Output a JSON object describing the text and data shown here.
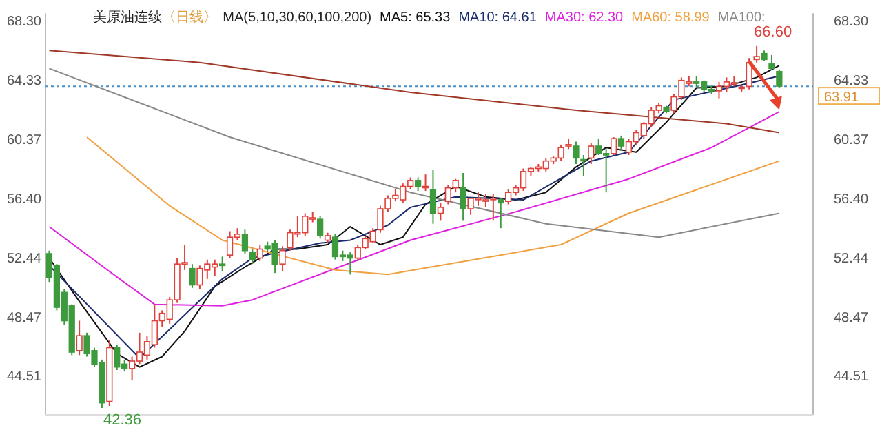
{
  "chart_data": {
    "type": "candlestick",
    "title": "美原油连续",
    "subtitle": "〈日线〉",
    "legend_title": "MA(5,10,30,60,100,200)",
    "legend": "top",
    "categories": [
      null,
      null,
      null,
      null,
      null,
      null,
      null,
      null,
      null,
      null,
      null,
      null,
      null,
      null,
      null,
      null,
      null,
      null,
      null,
      null,
      null,
      null,
      null,
      null,
      null,
      null,
      null,
      null,
      null,
      null,
      null,
      null,
      null,
      null,
      null,
      null,
      null,
      null,
      null,
      null,
      null,
      null,
      null,
      null,
      null,
      null,
      null,
      null,
      null,
      null,
      null,
      null,
      null,
      null,
      null,
      null,
      null,
      null,
      null,
      null,
      null,
      null,
      null,
      null,
      null,
      null,
      null,
      null,
      null,
      null,
      null,
      null,
      null,
      null,
      null,
      null,
      null,
      null,
      null,
      null,
      null,
      null,
      null,
      null,
      null,
      null,
      null,
      null,
      null,
      null,
      null,
      null,
      null,
      null,
      null,
      null,
      null,
      null
    ],
    "ohlc": [
      [
        52.7,
        52.9,
        50.8,
        51.1
      ],
      [
        51.9,
        52.0,
        48.9,
        49.1
      ],
      [
        50.1,
        50.3,
        47.9,
        48.2
      ],
      [
        49.2,
        49.3,
        45.9,
        46.1
      ],
      [
        46.2,
        48.2,
        45.9,
        47.2
      ],
      [
        47.2,
        47.4,
        45.8,
        46.0
      ],
      [
        46.2,
        46.4,
        45.1,
        45.3
      ],
      [
        45.4,
        45.6,
        42.36,
        42.7
      ],
      [
        42.8,
        46.9,
        42.5,
        46.4
      ],
      [
        46.4,
        46.6,
        44.9,
        45.1
      ],
      [
        45.3,
        45.6,
        44.8,
        45.0
      ],
      [
        45.0,
        45.8,
        44.2,
        45.5
      ],
      [
        45.5,
        47.4,
        45.3,
        46.1
      ],
      [
        45.9,
        47.2,
        45.6,
        46.8
      ],
      [
        46.6,
        49.3,
        46.4,
        48.2
      ],
      [
        48.2,
        48.9,
        47.8,
        48.7
      ],
      [
        48.3,
        49.8,
        48.0,
        49.6
      ],
      [
        49.6,
        52.4,
        49.4,
        52.0
      ],
      [
        52.0,
        53.3,
        51.6,
        52.1
      ],
      [
        51.7,
        52.0,
        50.4,
        50.6
      ],
      [
        50.6,
        51.9,
        50.3,
        51.7
      ],
      [
        51.6,
        52.3,
        51.0,
        52.0
      ],
      [
        51.8,
        52.3,
        51.2,
        52.0
      ],
      [
        52.0,
        52.5,
        51.5,
        51.9
      ],
      [
        52.6,
        54.2,
        52.4,
        53.8
      ],
      [
        53.8,
        54.4,
        53.6,
        54.0
      ],
      [
        54.0,
        54.3,
        52.7,
        52.9
      ],
      [
        52.8,
        53.0,
        52.0,
        52.3
      ],
      [
        52.4,
        53.3,
        52.2,
        53.0
      ],
      [
        53.2,
        53.5,
        52.8,
        53.0
      ],
      [
        53.4,
        53.6,
        51.4,
        52.0
      ],
      [
        52.0,
        53.2,
        51.5,
        52.9
      ],
      [
        53.1,
        54.3,
        52.9,
        54.1
      ],
      [
        54.1,
        55.2,
        53.8,
        54.1
      ],
      [
        54.1,
        55.4,
        53.9,
        55.2
      ],
      [
        55.1,
        55.5,
        54.8,
        55.1
      ],
      [
        55.0,
        55.2,
        53.7,
        53.9
      ],
      [
        53.6,
        54.1,
        53.4,
        53.9
      ],
      [
        53.8,
        54.0,
        52.3,
        52.5
      ],
      [
        52.6,
        52.9,
        52.2,
        52.5
      ],
      [
        52.6,
        52.8,
        51.3,
        52.4
      ],
      [
        52.4,
        53.3,
        52.2,
        53.1
      ],
      [
        53.1,
        53.9,
        53.0,
        53.7
      ],
      [
        53.5,
        54.4,
        53.4,
        54.2
      ],
      [
        54.3,
        55.9,
        54.1,
        55.7
      ],
      [
        55.7,
        56.6,
        55.5,
        56.4
      ],
      [
        56.4,
        57.0,
        56.2,
        56.6
      ],
      [
        56.3,
        57.4,
        56.1,
        57.2
      ],
      [
        57.2,
        57.8,
        57.0,
        57.6
      ],
      [
        57.6,
        57.8,
        56.9,
        57.2
      ],
      [
        57.2,
        58.0,
        56.9,
        57.2
      ],
      [
        57.0,
        58.3,
        54.7,
        55.4
      ],
      [
        55.4,
        56.1,
        54.9,
        55.8
      ],
      [
        56.2,
        57.3,
        56.0,
        57.1
      ],
      [
        57.1,
        57.7,
        56.8,
        57.6
      ],
      [
        57.1,
        58.1,
        54.9,
        55.7
      ],
      [
        55.7,
        56.4,
        55.3,
        56.4
      ],
      [
        56.4,
        56.8,
        55.9,
        56.4
      ],
      [
        56.3,
        56.7,
        55.8,
        56.3
      ],
      [
        56.4,
        56.7,
        54.9,
        56.4
      ],
      [
        56.3,
        56.4,
        54.4,
        56.1
      ],
      [
        56.2,
        57.0,
        56.0,
        56.8
      ],
      [
        56.8,
        57.3,
        56.6,
        57.1
      ],
      [
        57.1,
        58.4,
        56.9,
        58.2
      ],
      [
        58.2,
        58.5,
        57.9,
        58.4
      ],
      [
        58.4,
        58.7,
        58.2,
        58.5
      ],
      [
        58.4,
        59.1,
        58.2,
        58.9
      ],
      [
        58.9,
        59.2,
        58.7,
        59.1
      ],
      [
        59.1,
        60.0,
        58.9,
        59.8
      ],
      [
        59.9,
        60.4,
        59.7,
        60.0
      ],
      [
        59.9,
        60.2,
        58.7,
        59.1
      ],
      [
        59.0,
        59.3,
        57.9,
        58.95
      ],
      [
        59.1,
        60.1,
        58.7,
        59.9
      ],
      [
        59.9,
        60.4,
        59.3,
        59.4
      ],
      [
        59.4,
        59.7,
        56.8,
        59.3
      ],
      [
        59.4,
        60.5,
        59.3,
        60.4
      ],
      [
        60.4,
        60.6,
        59.7,
        59.9
      ],
      [
        59.5,
        60.4,
        59.3,
        60.2
      ],
      [
        60.2,
        61.0,
        60.0,
        60.8
      ],
      [
        60.6,
        61.5,
        60.4,
        61.4
      ],
      [
        61.4,
        62.5,
        61.2,
        62.3
      ],
      [
        62.3,
        62.8,
        62.1,
        62.6
      ],
      [
        62.5,
        62.6,
        62.1,
        62.2
      ],
      [
        62.3,
        63.4,
        62.1,
        63.2
      ],
      [
        63.2,
        64.5,
        63.0,
        64.3
      ],
      [
        64.1,
        64.6,
        63.9,
        64.2
      ],
      [
        64.2,
        64.6,
        63.8,
        64.1
      ],
      [
        64.2,
        64.3,
        63.5,
        63.7
      ],
      [
        63.7,
        64.0,
        63.4,
        63.6
      ],
      [
        63.6,
        64.2,
        63.1,
        63.9
      ],
      [
        63.9,
        64.5,
        63.5,
        64.2
      ],
      [
        64.1,
        64.6,
        63.9,
        64.15
      ],
      [
        63.8,
        64.0,
        63.5,
        63.85
      ],
      [
        63.9,
        65.8,
        63.7,
        65.5
      ],
      [
        65.7,
        66.6,
        65.5,
        65.9
      ],
      [
        66.1,
        66.3,
        65.6,
        65.7
      ],
      [
        65.4,
        66.0,
        65.0,
        65.1
      ],
      [
        64.9,
        65.0,
        63.8,
        63.91
      ]
    ],
    "colors": [
      "#3d9a3d",
      "#3d9a3d",
      "#3d9a3d",
      "#3d9a3d",
      "#e0403a",
      "#3d9a3d",
      "#3d9a3d",
      "#3d9a3d",
      "#e0403a",
      "#3d9a3d",
      "#3d9a3d",
      "#e0403a",
      "#e0403a",
      "#e0403a",
      "#e0403a",
      "#e0403a",
      "#e0403a",
      "#e0403a",
      "#e0403a",
      "#3d9a3d",
      "#e0403a",
      "#e0403a",
      "#e0403a",
      "#3d9a3d",
      "#e0403a",
      "#e0403a",
      "#3d9a3d",
      "#3d9a3d",
      "#e0403a",
      "#3d9a3d",
      "#3d9a3d",
      "#e0403a",
      "#e0403a",
      "#e0403a",
      "#e0403a",
      "#e0403a",
      "#3d9a3d",
      "#e0403a",
      "#3d9a3d",
      "#3d9a3d",
      "#3d9a3d",
      "#e0403a",
      "#e0403a",
      "#e0403a",
      "#e0403a",
      "#e0403a",
      "#e0403a",
      "#e0403a",
      "#e0403a",
      "#3d9a3d",
      "#e0403a",
      "#3d9a3d",
      "#e0403a",
      "#e0403a",
      "#e0403a",
      "#3d9a3d",
      "#e0403a",
      "#e0403a",
      "#e0403a",
      "#e0403a",
      "#3d9a3d",
      "#e0403a",
      "#e0403a",
      "#e0403a",
      "#e0403a",
      "#e0403a",
      "#e0403a",
      "#e0403a",
      "#e0403a",
      "#e0403a",
      "#3d9a3d",
      "#3d9a3d",
      "#e0403a",
      "#3d9a3d",
      "#3d9a3d",
      "#e0403a",
      "#3d9a3d",
      "#e0403a",
      "#e0403a",
      "#e0403a",
      "#e0403a",
      "#e0403a",
      "#3d9a3d",
      "#e0403a",
      "#e0403a",
      "#e0403a",
      "#3d9a3d",
      "#3d9a3d",
      "#3d9a3d",
      "#e0403a",
      "#e0403a",
      "#e0403a",
      "#e0403a",
      "#e0403a",
      "#e0403a",
      "#3d9a3d",
      "#3d9a3d",
      "#3d9a3d"
    ],
    "series": [
      {
        "name": "MA5: 65.33",
        "type": "line",
        "color": "#111111",
        "values": [
          52.4,
          null,
          null,
          null,
          49.5,
          null,
          null,
          null,
          null,
          46.0,
          null,
          null,
          45.1,
          null,
          null,
          45.8,
          null,
          null,
          47.5,
          null,
          null,
          null,
          50.5,
          null,
          null,
          null,
          51.8,
          null,
          null,
          null,
          53.0,
          null,
          null,
          53.0,
          null,
          null,
          null,
          53.3,
          null,
          null,
          54.5,
          null,
          null,
          null,
          53.3,
          null,
          null,
          53.8,
          null,
          null,
          56.0,
          null,
          null,
          null,
          57.2,
          null,
          null,
          null,
          56.5,
          null,
          null,
          null,
          56.3,
          null,
          null,
          null,
          56.8,
          null,
          null,
          null,
          58.5,
          null,
          null,
          null,
          59.8,
          null,
          null,
          null,
          59.5,
          null,
          null,
          null,
          61.5,
          null,
          null,
          null,
          63.8,
          null,
          null,
          null,
          63.9,
          null,
          null,
          null,
          64.5,
          null,
          null,
          65.3
        ]
      },
      {
        "name": "MA10: 64.61",
        "type": "line",
        "color": "#1a2a6c",
        "values": [
          51.9,
          null,
          null,
          null,
          null,
          null,
          null,
          null,
          null,
          null,
          null,
          null,
          45.7,
          null,
          null,
          null,
          null,
          null,
          null,
          null,
          null,
          null,
          null,
          51.0,
          null,
          null,
          null,
          52.4,
          null,
          null,
          null,
          null,
          null,
          null,
          null,
          null,
          53.4,
          null,
          null,
          null,
          53.6,
          null,
          null,
          null,
          null,
          54.6,
          null,
          null,
          55.8,
          null,
          null,
          null,
          null,
          null,
          56.5,
          null,
          null,
          null,
          null,
          null,
          null,
          null,
          null,
          56.3,
          null,
          null,
          null,
          null,
          null,
          null,
          null,
          null,
          58.9,
          null,
          null,
          null,
          null,
          59.5,
          null,
          null,
          null,
          null,
          null,
          63.0,
          null,
          null,
          null,
          null,
          null,
          null,
          null,
          null,
          64.0,
          null,
          null,
          null,
          null,
          64.6
        ]
      },
      {
        "name": "MA30: 62.30",
        "type": "line",
        "color": "#e020e0",
        "values": [
          54.5,
          null,
          null,
          null,
          null,
          null,
          null,
          null,
          51.5,
          null,
          null,
          null,
          null,
          null,
          49.3,
          null,
          null,
          null,
          null,
          null,
          null,
          null,
          null,
          49.2,
          null,
          null,
          null,
          49.6,
          null,
          null,
          null,
          null,
          null,
          null,
          null,
          null,
          null,
          null,
          null,
          null,
          null,
          null,
          null,
          null,
          null,
          null,
          null,
          null,
          53.6,
          null,
          null,
          null,
          null,
          null,
          null,
          null,
          null,
          null,
          null,
          null,
          null,
          null,
          55.5,
          null,
          null,
          null,
          null,
          null,
          null,
          null,
          null,
          null,
          null,
          null,
          null,
          null,
          null,
          57.7,
          null,
          null,
          null,
          null,
          null,
          null,
          null,
          null,
          null,
          null,
          59.8,
          null,
          null,
          null,
          null,
          null,
          null,
          null,
          null,
          62.2
        ]
      },
      {
        "name": "MA60: 58.99",
        "type": "line",
        "color": "#f0a040",
        "values": [
          null,
          null,
          null,
          null,
          null,
          60.5,
          null,
          null,
          null,
          null,
          null,
          null,
          null,
          null,
          null,
          null,
          55.9,
          null,
          null,
          null,
          null,
          null,
          null,
          53.6,
          null,
          null,
          null,
          null,
          null,
          null,
          null,
          null,
          null,
          null,
          null,
          null,
          null,
          null,
          51.6,
          null,
          null,
          null,
          null,
          null,
          null,
          51.3,
          null,
          null,
          null,
          null,
          null,
          null,
          null,
          null,
          null,
          null,
          null,
          null,
          null,
          null,
          null,
          null,
          null,
          null,
          null,
          null,
          null,
          null,
          53.3,
          null,
          null,
          null,
          null,
          null,
          null,
          null,
          null,
          55.4,
          null,
          null,
          null,
          null,
          null,
          null,
          null,
          null,
          null,
          null,
          null,
          null,
          null,
          null,
          null,
          null,
          null,
          null,
          null,
          58.9
        ]
      },
      {
        "name": "MA100:",
        "type": "line",
        "color": "#888888",
        "values": [
          65.1,
          null,
          null,
          null,
          null,
          null,
          null,
          null,
          null,
          null,
          null,
          null,
          62.8,
          null,
          null,
          null,
          null,
          null,
          null,
          null,
          null,
          null,
          null,
          null,
          60.5,
          null,
          null,
          null,
          null,
          null,
          null,
          null,
          null,
          null,
          null,
          null,
          null,
          null,
          null,
          null,
          null,
          null,
          null,
          null,
          null,
          null,
          null,
          null,
          56.8,
          null,
          null,
          null,
          null,
          null,
          null,
          null,
          null,
          null,
          null,
          null,
          null,
          null,
          null,
          null,
          null,
          null,
          54.7,
          null,
          null,
          null,
          null,
          null,
          null,
          null,
          null,
          null,
          null,
          null,
          null,
          null,
          null,
          53.8,
          null,
          null,
          null,
          null,
          null,
          null,
          null,
          null,
          null,
          null,
          null,
          null,
          null,
          null,
          null,
          55.4
        ]
      },
      {
        "type": "line",
        "color": "#a03828",
        "values": [
          66.3,
          null,
          null,
          null,
          null,
          null,
          null,
          null,
          null,
          null,
          null,
          null,
          null,
          null,
          null,
          null,
          null,
          null,
          null,
          null,
          65.5,
          null,
          null,
          null,
          null,
          null,
          null,
          null,
          null,
          null,
          null,
          null,
          null,
          null,
          null,
          null,
          null,
          null,
          null,
          null,
          null,
          null,
          null,
          null,
          null,
          null,
          null,
          null,
          63.5,
          null,
          null,
          null,
          null,
          null,
          null,
          null,
          null,
          null,
          null,
          null,
          null,
          null,
          null,
          null,
          null,
          null,
          null,
          null,
          null,
          null,
          62.3,
          null,
          null,
          null,
          null,
          null,
          null,
          null,
          null,
          null,
          null,
          null,
          null,
          null,
          null,
          null,
          null,
          null,
          null,
          null,
          61.4,
          null,
          null,
          null,
          null,
          null,
          null,
          60.8
        ]
      }
    ],
    "ylim": [
      41.9,
      68.8
    ],
    "yticks": [
      {
        "value": 44.51,
        "label": "44.51"
      },
      {
        "value": 48.47,
        "label": "48.47"
      },
      {
        "value": 52.44,
        "label": "52.44"
      },
      {
        "value": 56.4,
        "label": "56.40"
      },
      {
        "value": 60.37,
        "label": "60.37"
      },
      {
        "value": 64.33,
        "label": "64.33"
      },
      {
        "value": 68.3,
        "label": "68.30"
      }
    ],
    "y2lim": [
      41.9,
      68.8
    ],
    "y2ticks": [
      {
        "value": 44.51,
        "label": "44.51"
      },
      {
        "value": 48.47,
        "label": "48.47"
      },
      {
        "value": 52.44,
        "label": "52.44"
      },
      {
        "value": 56.4,
        "label": "56.40"
      },
      {
        "value": 60.37,
        "label": "60.37"
      },
      {
        "value": 64.33,
        "label": "64.33"
      },
      {
        "value": 68.3,
        "label": "68.30"
      }
    ],
    "tick_labels": "y",
    "ref_lines": [
      {
        "axis": "y2",
        "value": 63.91,
        "label": "63.91",
        "color": "#4a90c8",
        "line_style": "dotted"
      }
    ],
    "annotations": [
      "66.60",
      "42.36"
    ]
  }
}
